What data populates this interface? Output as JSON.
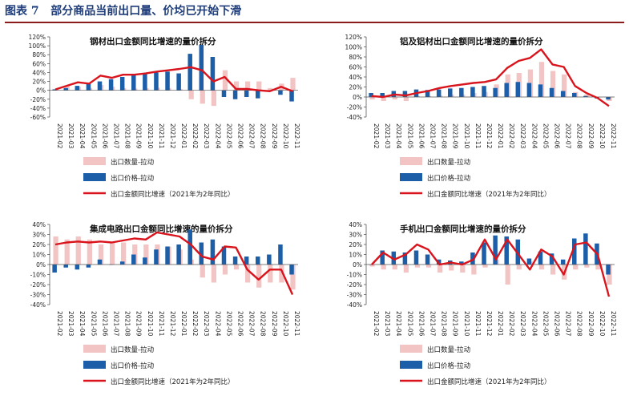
{
  "header": {
    "figure_label": "图表 7",
    "title": "部分商品当前出口量、价均已开始下滑"
  },
  "colors": {
    "quantity": "#f2c4c4",
    "price": "#1c5ea8",
    "growth": "#d9141c",
    "header": "#1f3d7a",
    "rule": "#8a1c1c"
  },
  "chart_data": [
    {
      "type": "bar",
      "title": "钢材出口金额同比增速的量价拆分",
      "categories": [
        "2021-02",
        "2021-03",
        "2021-04",
        "2021-05",
        "2021-06",
        "2021-07",
        "2021-08",
        "2021-09",
        "2021-10",
        "2021-11",
        "2021-12",
        "2022-01",
        "2022-02",
        "2022-03",
        "2022-04",
        "2022-05",
        "2022-06",
        "2022-07",
        "2022-08",
        "2022-09",
        "2022-10",
        "2022-11"
      ],
      "tick_labels": [
        "2021-02",
        "2021-03",
        "2021-04",
        "2021-05",
        "2021-06",
        "2021-07",
        "2021-08",
        "2021-09",
        "2021-10",
        "2021-11",
        "2021-12",
        "2022-01",
        "2022-02",
        "2022-03",
        "2022-04",
        "2022-05",
        "2022-06",
        "2022-07",
        "2022-08",
        "2022-09",
        "2022-10",
        "2022-11"
      ],
      "ylim": [
        -60,
        120
      ],
      "yticks": [
        -60,
        -40,
        -20,
        0,
        20,
        40,
        60,
        80,
        100,
        120
      ],
      "series": [
        {
          "name": "出口数量-拉动",
          "kind": "bar",
          "values": [
            3,
            10,
            8,
            5,
            12,
            8,
            5,
            4,
            5,
            6,
            5,
            3,
            -20,
            -30,
            -35,
            45,
            20,
            20,
            20,
            5,
            15,
            28
          ]
        },
        {
          "name": "出口价格-拉动",
          "kind": "bar",
          "values": [
            2,
            5,
            10,
            15,
            20,
            25,
            30,
            35,
            37,
            40,
            42,
            38,
            82,
            102,
            75,
            -15,
            -20,
            -15,
            -18,
            0,
            -10,
            -25
          ]
        },
        {
          "name": "出口金额同比增速（2021年为2年同比）",
          "kind": "line",
          "values": [
            2,
            10,
            18,
            15,
            33,
            28,
            35,
            35,
            38,
            42,
            45,
            48,
            52,
            45,
            20,
            30,
            3,
            3,
            0,
            -2,
            8,
            -2
          ]
        }
      ]
    },
    {
      "type": "bar",
      "title": "铝及铝材出口金额同比增速的量价拆分",
      "categories": [
        "2021-02",
        "2021-03",
        "2021-04",
        "2021-05",
        "2021-06",
        "2021-07",
        "2021-08",
        "2021-09",
        "2021-10",
        "2021-11",
        "2021-12",
        "2022-01",
        "2022-02",
        "2022-03",
        "2022-04",
        "2022-05",
        "2022-06",
        "2022-07",
        "2022-08",
        "2022-09",
        "2022-10",
        "2022-11"
      ],
      "tick_labels": [
        "2021-02",
        "2021-03",
        "2021-04",
        "2021-05",
        "2021-06",
        "2021-07",
        "2021-08",
        "2021-09",
        "2021-10",
        "2021-11",
        "2021-12",
        "2022-01",
        "2022-02",
        "2022-03",
        "2022-04",
        "2022-05",
        "2022-06",
        "2022-07",
        "2022-08",
        "2022-09",
        "2022-10",
        "2022-11"
      ],
      "ylim": [
        -40,
        120
      ],
      "yticks": [
        -40,
        -20,
        0,
        20,
        40,
        60,
        80,
        100,
        120
      ],
      "series": [
        {
          "name": "出口数量-拉动",
          "kind": "bar",
          "values": [
            -5,
            -8,
            -5,
            -8,
            2,
            2,
            3,
            5,
            5,
            8,
            10,
            25,
            45,
            48,
            55,
            70,
            52,
            45,
            10,
            5,
            0,
            -8
          ]
        },
        {
          "name": "出口价格-拉动",
          "kind": "bar",
          "values": [
            8,
            8,
            12,
            12,
            15,
            14,
            15,
            17,
            18,
            20,
            22,
            18,
            28,
            30,
            28,
            25,
            18,
            12,
            8,
            2,
            -3,
            -5
          ]
        },
        {
          "name": "出口金额同比增速（2021年为2年同比）",
          "kind": "line",
          "values": [
            2,
            0,
            5,
            3,
            8,
            12,
            18,
            22,
            25,
            28,
            30,
            35,
            58,
            72,
            78,
            95,
            65,
            60,
            22,
            8,
            -2,
            -18
          ]
        }
      ]
    },
    {
      "type": "bar",
      "title": "集成电路出口金额同比增速的量价拆分",
      "categories": [
        "2021-02",
        "2021-03",
        "2021-04",
        "2021-05",
        "2021-06",
        "2021-07",
        "2021-08",
        "2021-09",
        "2021-10",
        "2021-11",
        "2021-12",
        "2022-01",
        "2022-02",
        "2022-03",
        "2022-04",
        "2022-05",
        "2022-06",
        "2022-07",
        "2022-08",
        "2022-09",
        "2022-10",
        "2022-11"
      ],
      "tick_labels": [
        "2021-02",
        "2021-03",
        "2021-04",
        "2021-05",
        "2021-06",
        "2021-07",
        "2021-08",
        "2021-09",
        "2021-10",
        "2021-11",
        "2021-12",
        "2022-01",
        "2022-02",
        "2022-03",
        "2022-04",
        "2022-05",
        "2022-06",
        "2022-07",
        "2022-08",
        "2022-09",
        "2022-10",
        "2022-11"
      ],
      "ylim": [
        -40,
        40
      ],
      "yticks": [
        -40,
        -30,
        -20,
        -10,
        0,
        10,
        20,
        30,
        40
      ],
      "series": [
        {
          "name": "出口数量-拉动",
          "kind": "bar",
          "values": [
            28,
            25,
            28,
            25,
            20,
            22,
            22,
            20,
            20,
            20,
            18,
            15,
            5,
            -13,
            -18,
            -10,
            -5,
            -18,
            -23,
            -18,
            -18,
            -25
          ]
        },
        {
          "name": "出口价格-拉动",
          "kind": "bar",
          "values": [
            -8,
            -3,
            -5,
            -3,
            5,
            0,
            3,
            10,
            7,
            15,
            18,
            20,
            35,
            22,
            25,
            18,
            8,
            8,
            8,
            10,
            20,
            -10
          ]
        },
        {
          "name": "出口金额同比增速（2021年为2年同比）",
          "kind": "line",
          "values": [
            20,
            22,
            23,
            22,
            23,
            22,
            24,
            26,
            25,
            32,
            30,
            28,
            20,
            8,
            5,
            18,
            17,
            -5,
            -15,
            -5,
            -5,
            -30
          ]
        }
      ]
    },
    {
      "type": "bar",
      "title": "手机出口金额同比增速的量价拆分",
      "categories": [
        "2021-02",
        "2021-03",
        "2021-04",
        "2021-05",
        "2021-06",
        "2021-07",
        "2021-08",
        "2021-09",
        "2021-10",
        "2021-11",
        "2021-12",
        "2022-01",
        "2022-02",
        "2022-03",
        "2022-04",
        "2022-05",
        "2022-06",
        "2022-07",
        "2022-08",
        "2022-09",
        "2022-10",
        "2022-11"
      ],
      "tick_labels": [
        "2021-02",
        "",
        "2021-04",
        "",
        "2021-06",
        "",
        "2021-08",
        "",
        "2021-10",
        "",
        "2021-12",
        "",
        "2022-02",
        "",
        "2022-04",
        "",
        "2022-06",
        "",
        "2022-08",
        "",
        "2022-10",
        ""
      ],
      "tick_labels_alt": [
        "2021-03",
        "2021-05",
        "2021-07",
        "2021-09",
        "2021-11",
        "2022-01",
        "2022-03",
        "2022-05",
        "2022-07",
        "2022-09",
        "2022-11"
      ],
      "ylim": [
        -40,
        40
      ],
      "yticks": [
        -40,
        -30,
        -20,
        -10,
        0,
        10,
        20,
        30,
        40
      ],
      "series": [
        {
          "name": "出口数量-拉动",
          "kind": "bar",
          "values": [
            -2,
            -5,
            -5,
            -8,
            -3,
            -3,
            -8,
            -6,
            -8,
            -10,
            -3,
            5,
            -20,
            -5,
            3,
            -5,
            -10,
            -15,
            -5,
            -3,
            -5,
            -20
          ]
        },
        {
          "name": "出口价格-拉动",
          "kind": "bar",
          "values": [
            0,
            14,
            13,
            12,
            14,
            10,
            5,
            4,
            3,
            12,
            22,
            29,
            28,
            25,
            6,
            13,
            11,
            5,
            26,
            31,
            21,
            -10
          ]
        },
        {
          "name": "出口金额同比增速（2021年为2年同比）",
          "kind": "line",
          "values": [
            0,
            12,
            5,
            10,
            20,
            15,
            0,
            2,
            0,
            5,
            25,
            5,
            25,
            10,
            -5,
            15,
            8,
            -10,
            20,
            22,
            10,
            -32
          ]
        }
      ]
    }
  ]
}
